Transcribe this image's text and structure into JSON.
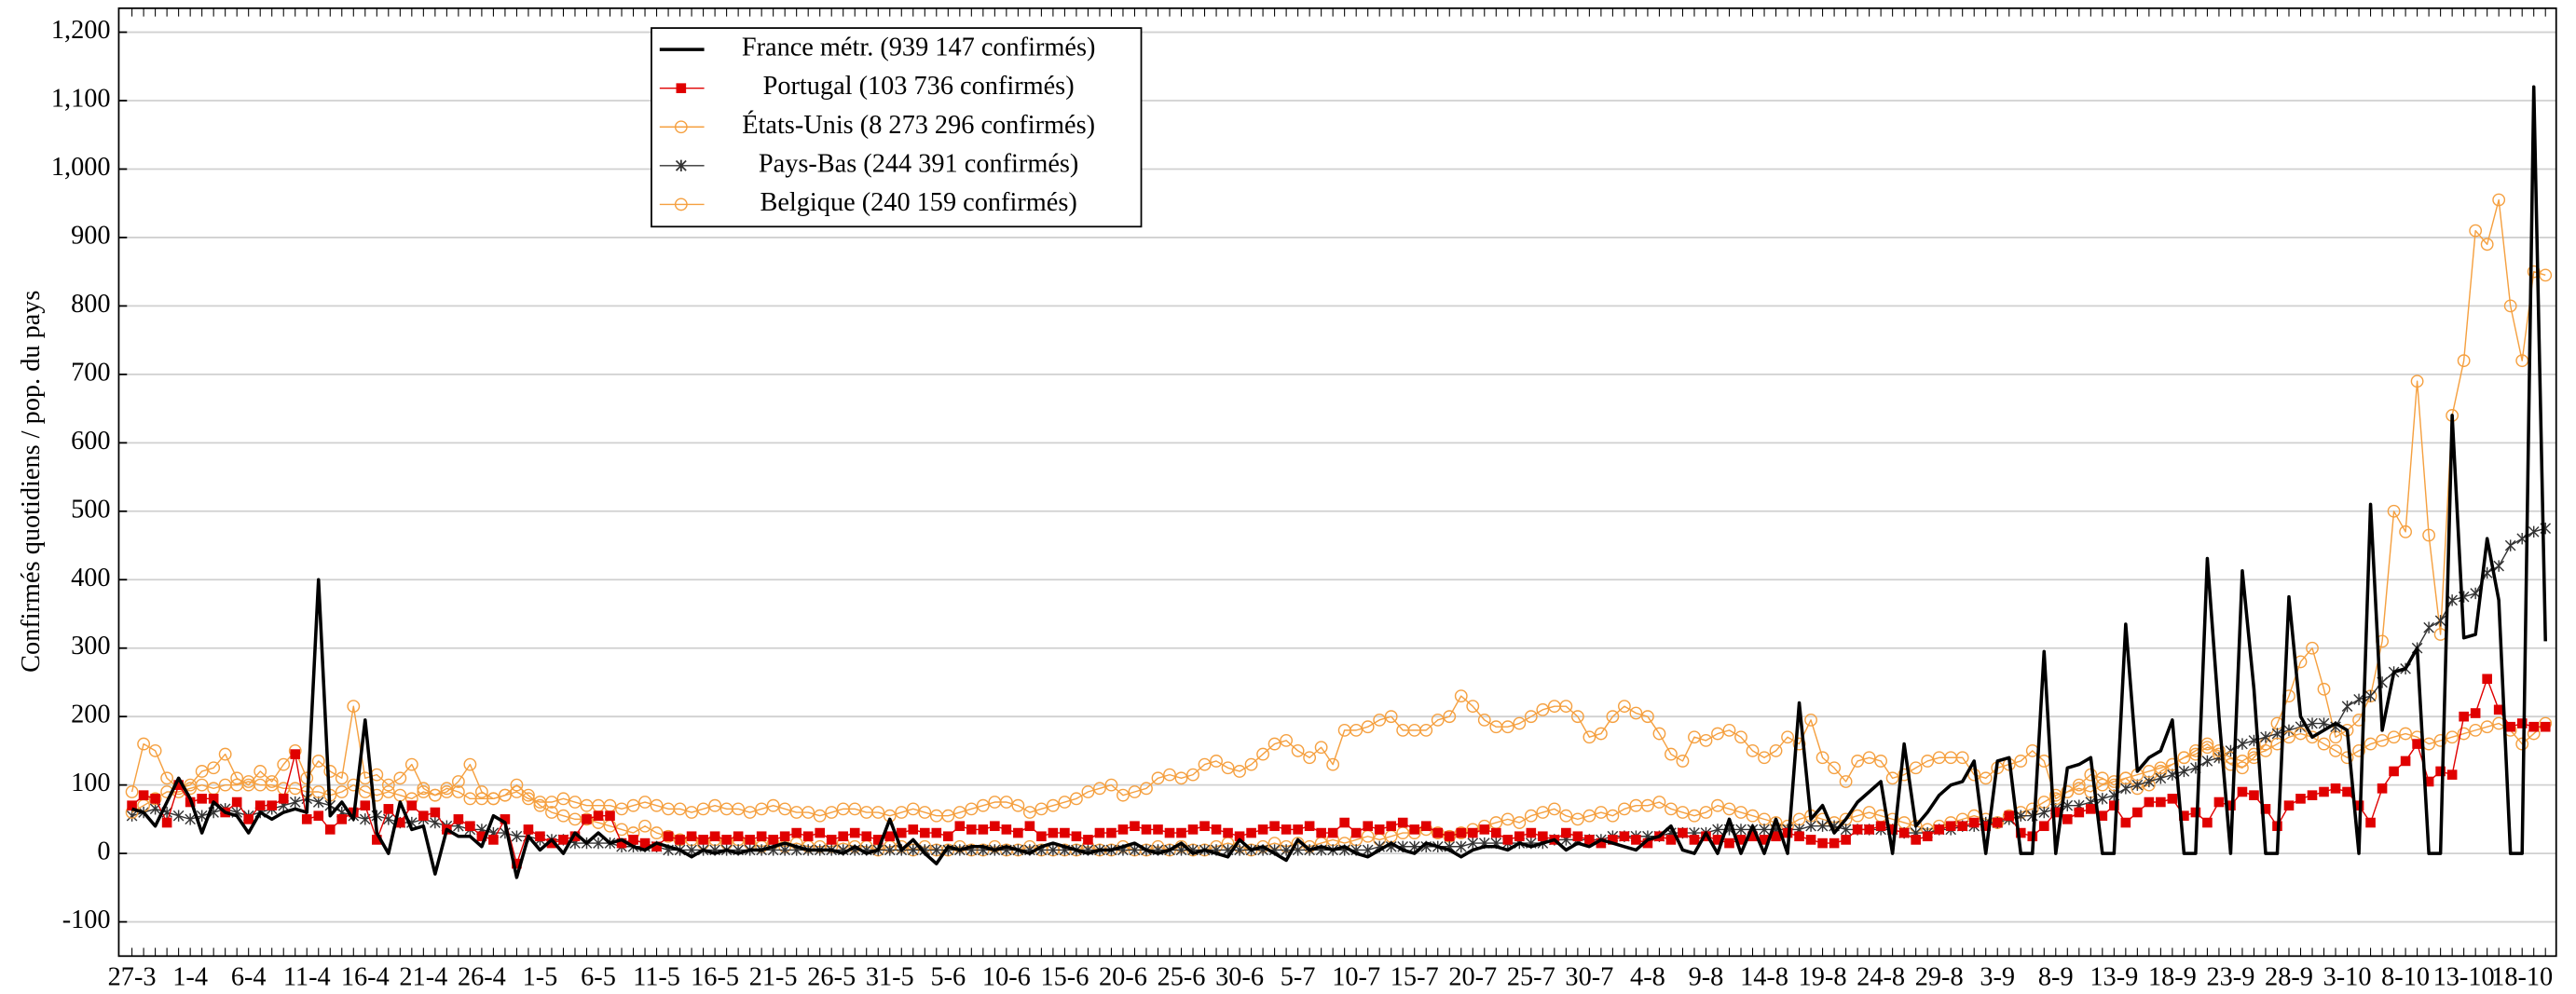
{
  "chart_data": {
    "type": "line",
    "y_label": "Confirmés quotidiens / pop. du pays",
    "categories": [
      "27-3",
      null,
      null,
      null,
      null,
      "1-4",
      null,
      null,
      null,
      null,
      "6-4",
      null,
      null,
      null,
      null,
      "11-4",
      null,
      null,
      null,
      null,
      "16-4",
      null,
      null,
      null,
      null,
      "21-4",
      null,
      null,
      null,
      null,
      "26-4",
      null,
      null,
      null,
      null,
      "1-5",
      null,
      null,
      null,
      null,
      "6-5",
      null,
      null,
      null,
      null,
      "11-5",
      null,
      null,
      null,
      null,
      "16-5",
      null,
      null,
      null,
      null,
      "21-5",
      null,
      null,
      null,
      null,
      "26-5",
      null,
      null,
      null,
      null,
      "31-5",
      null,
      null,
      null,
      null,
      "5-6",
      null,
      null,
      null,
      null,
      "10-6",
      null,
      null,
      null,
      null,
      "15-6",
      null,
      null,
      null,
      null,
      "20-6",
      null,
      null,
      null,
      null,
      "25-6",
      null,
      null,
      null,
      null,
      "30-6",
      null,
      null,
      null,
      null,
      "5-7",
      null,
      null,
      null,
      null,
      "10-7",
      null,
      null,
      null,
      null,
      "15-7",
      null,
      null,
      null,
      null,
      "20-7",
      null,
      null,
      null,
      null,
      "25-7",
      null,
      null,
      null,
      null,
      "30-7",
      null,
      null,
      null,
      null,
      "4-8",
      null,
      null,
      null,
      null,
      "9-8",
      null,
      null,
      null,
      null,
      "14-8",
      null,
      null,
      null,
      null,
      "19-8",
      null,
      null,
      null,
      null,
      "24-8",
      null,
      null,
      null,
      null,
      "29-8",
      null,
      null,
      null,
      null,
      "3-9",
      null,
      null,
      null,
      null,
      "8-9",
      null,
      null,
      null,
      null,
      "13-9",
      null,
      null,
      null,
      null,
      "18-9",
      null,
      null,
      null,
      null,
      "23-9",
      null,
      null,
      null,
      null,
      "28-9",
      null,
      null,
      null,
      null,
      "3-10",
      null,
      null,
      null,
      null,
      "8-10",
      null,
      null,
      null,
      null,
      "13-10",
      null,
      null,
      null,
      null,
      "18-10",
      null,
      null
    ],
    "series": [
      {
        "name": "France métr. (939 147 confirmés)",
        "color": "#000000",
        "marker": "none",
        "width": 2,
        "values": [
          65,
          60,
          40,
          75,
          110,
          80,
          30,
          75,
          60,
          55,
          30,
          60,
          50,
          60,
          65,
          60,
          400,
          55,
          75,
          50,
          195,
          30,
          0,
          75,
          35,
          40,
          -30,
          35,
          25,
          25,
          10,
          55,
          45,
          -35,
          25,
          5,
          20,
          0,
          30,
          15,
          30,
          15,
          20,
          10,
          5,
          15,
          10,
          5,
          -5,
          5,
          0,
          5,
          0,
          5,
          5,
          10,
          15,
          10,
          5,
          5,
          5,
          0,
          10,
          0,
          5,
          50,
          5,
          20,
          0,
          -15,
          10,
          5,
          10,
          10,
          5,
          10,
          5,
          0,
          10,
          15,
          10,
          5,
          0,
          5,
          5,
          10,
          15,
          5,
          0,
          5,
          15,
          0,
          5,
          0,
          -5,
          20,
          5,
          10,
          0,
          -10,
          20,
          5,
          10,
          5,
          10,
          0,
          -5,
          5,
          15,
          5,
          0,
          15,
          10,
          5,
          -5,
          5,
          10,
          10,
          5,
          15,
          10,
          15,
          20,
          5,
          15,
          10,
          20,
          15,
          10,
          5,
          20,
          25,
          40,
          5,
          0,
          30,
          0,
          50,
          0,
          40,
          0,
          50,
          0,
          220,
          50,
          70,
          30,
          50,
          75,
          90,
          105,
          0,
          160,
          40,
          60,
          85,
          100,
          105,
          135,
          0,
          135,
          140,
          0,
          0,
          295,
          0,
          125,
          130,
          140,
          0,
          0,
          335,
          120,
          140,
          150,
          195,
          0,
          0,
          431,
          200,
          0,
          413,
          240,
          0,
          0,
          375,
          200,
          170,
          180,
          190,
          180,
          0,
          510,
          180,
          265,
          270,
          300,
          0,
          0,
          640,
          315,
          320,
          460,
          370,
          0,
          0,
          1120,
          310
        ]
      },
      {
        "name": "Portugal (103 736 confirmés)",
        "color": "#e00000",
        "marker": "square",
        "width": 0.8,
        "values": [
          70,
          85,
          80,
          45,
          100,
          75,
          80,
          80,
          60,
          75,
          50,
          70,
          70,
          80,
          145,
          50,
          55,
          35,
          50,
          60,
          70,
          20,
          65,
          45,
          70,
          55,
          60,
          35,
          50,
          40,
          25,
          20,
          50,
          -15,
          35,
          25,
          15,
          20,
          25,
          50,
          55,
          55,
          15,
          20,
          15,
          10,
          25,
          20,
          25,
          20,
          25,
          20,
          25,
          20,
          25,
          20,
          25,
          30,
          25,
          30,
          20,
          25,
          30,
          25,
          20,
          25,
          30,
          35,
          30,
          30,
          25,
          40,
          35,
          35,
          40,
          35,
          30,
          40,
          25,
          30,
          30,
          25,
          20,
          30,
          30,
          35,
          40,
          35,
          35,
          30,
          30,
          35,
          40,
          35,
          30,
          25,
          30,
          35,
          40,
          35,
          35,
          40,
          30,
          30,
          45,
          30,
          40,
          35,
          40,
          45,
          35,
          40,
          30,
          25,
          30,
          30,
          35,
          30,
          20,
          25,
          30,
          25,
          20,
          30,
          25,
          20,
          15,
          20,
          25,
          20,
          15,
          25,
          20,
          30,
          20,
          25,
          20,
          15,
          20,
          25,
          20,
          25,
          30,
          25,
          20,
          15,
          15,
          20,
          35,
          35,
          40,
          35,
          30,
          20,
          25,
          35,
          40,
          40,
          45,
          40,
          45,
          55,
          30,
          25,
          40,
          60,
          50,
          60,
          65,
          55,
          70,
          45,
          60,
          75,
          75,
          80,
          55,
          60,
          45,
          75,
          70,
          90,
          85,
          65,
          40,
          70,
          80,
          85,
          90,
          95,
          90,
          70,
          45,
          95,
          120,
          135,
          160,
          105,
          120,
          115,
          200,
          205,
          255,
          210,
          185,
          190,
          185,
          185
        ]
      },
      {
        "name": "États-Unis (8 273 296 confirmés)",
        "color": "#f5a040",
        "marker": "circle",
        "width": 0.8,
        "values": [
          60,
          70,
          80,
          90,
          90,
          95,
          100,
          95,
          100,
          100,
          105,
          100,
          100,
          95,
          95,
          90,
          90,
          85,
          90,
          100,
          90,
          85,
          90,
          85,
          80,
          90,
          85,
          95,
          90,
          80,
          80,
          80,
          85,
          90,
          80,
          75,
          75,
          80,
          75,
          70,
          70,
          70,
          65,
          70,
          75,
          70,
          65,
          65,
          60,
          65,
          70,
          65,
          65,
          60,
          65,
          70,
          65,
          60,
          60,
          55,
          60,
          65,
          65,
          60,
          60,
          55,
          60,
          65,
          60,
          55,
          55,
          60,
          65,
          70,
          75,
          75,
          70,
          60,
          65,
          70,
          75,
          80,
          90,
          95,
          100,
          85,
          90,
          95,
          110,
          115,
          110,
          115,
          130,
          135,
          125,
          120,
          130,
          145,
          160,
          165,
          150,
          140,
          155,
          130,
          180,
          180,
          185,
          195,
          200,
          180,
          180,
          180,
          195,
          200,
          230,
          215,
          195,
          185,
          185,
          190,
          200,
          210,
          215,
          215,
          200,
          170,
          175,
          200,
          215,
          205,
          200,
          175,
          145,
          135,
          170,
          165,
          175,
          180,
          170,
          150,
          140,
          150,
          170,
          160,
          195,
          140,
          125,
          105,
          135,
          140,
          135,
          110,
          115,
          125,
          135,
          140,
          140,
          140,
          115,
          110,
          125,
          130,
          135,
          150,
          135,
          80,
          90,
          100,
          115,
          110,
          100,
          110,
          115,
          120,
          125,
          130,
          140,
          145,
          155,
          150,
          140,
          135,
          145,
          150,
          160,
          170,
          175,
          170,
          160,
          150,
          140,
          150,
          160,
          165,
          170,
          175,
          170,
          160,
          165,
          170,
          175,
          180,
          185,
          190,
          180,
          160,
          175,
          190
        ]
      },
      {
        "name": "Pays-Bas (244 391 confirmés)",
        "color": "#333333",
        "marker": "star",
        "width": 0.8,
        "values": [
          55,
          60,
          65,
          60,
          55,
          50,
          55,
          60,
          65,
          60,
          55,
          60,
          65,
          70,
          75,
          80,
          75,
          70,
          60,
          55,
          50,
          55,
          50,
          45,
          45,
          50,
          45,
          40,
          40,
          35,
          35,
          30,
          30,
          25,
          25,
          20,
          20,
          20,
          15,
          15,
          15,
          15,
          10,
          10,
          10,
          10,
          5,
          5,
          5,
          5,
          5,
          5,
          5,
          5,
          5,
          5,
          5,
          5,
          5,
          5,
          5,
          5,
          5,
          5,
          5,
          5,
          5,
          5,
          5,
          5,
          5,
          5,
          5,
          5,
          5,
          5,
          5,
          5,
          5,
          5,
          5,
          5,
          5,
          5,
          5,
          5,
          5,
          5,
          5,
          5,
          5,
          5,
          5,
          5,
          5,
          5,
          5,
          5,
          5,
          5,
          5,
          5,
          5,
          5,
          5,
          5,
          5,
          10,
          10,
          10,
          10,
          10,
          10,
          10,
          10,
          15,
          15,
          15,
          15,
          15,
          15,
          15,
          20,
          20,
          20,
          20,
          20,
          25,
          25,
          25,
          25,
          25,
          30,
          30,
          30,
          30,
          35,
          35,
          35,
          35,
          35,
          35,
          35,
          35,
          40,
          40,
          40,
          35,
          35,
          35,
          35,
          35,
          30,
          30,
          30,
          35,
          35,
          40,
          40,
          45,
          45,
          50,
          55,
          55,
          60,
          65,
          70,
          70,
          75,
          80,
          85,
          95,
          100,
          105,
          110,
          115,
          120,
          125,
          135,
          140,
          150,
          160,
          165,
          170,
          175,
          180,
          185,
          190,
          190,
          185,
          215,
          225,
          230,
          250,
          265,
          270,
          300,
          330,
          340,
          370,
          375,
          380,
          410,
          420,
          450,
          460,
          470,
          475
        ]
      },
      {
        "name": "Belgique (240 159 confirmés)",
        "color": "#f5a040",
        "marker": "circle",
        "width": 0.8,
        "values": [
          90,
          160,
          150,
          110,
          95,
          100,
          120,
          125,
          145,
          110,
          100,
          120,
          105,
          130,
          150,
          110,
          135,
          120,
          110,
          215,
          110,
          115,
          100,
          110,
          130,
          95,
          85,
          90,
          105,
          130,
          90,
          80,
          85,
          100,
          85,
          70,
          60,
          55,
          50,
          50,
          45,
          40,
          35,
          30,
          40,
          30,
          25,
          20,
          20,
          15,
          20,
          15,
          20,
          15,
          10,
          15,
          10,
          15,
          10,
          10,
          10,
          15,
          10,
          10,
          5,
          10,
          10,
          5,
          10,
          5,
          5,
          10,
          5,
          5,
          10,
          5,
          5,
          10,
          5,
          5,
          5,
          5,
          10,
          5,
          5,
          10,
          5,
          5,
          10,
          5,
          10,
          5,
          5,
          10,
          15,
          10,
          5,
          10,
          15,
          10,
          15,
          10,
          15,
          20,
          15,
          20,
          25,
          20,
          25,
          30,
          30,
          35,
          30,
          25,
          30,
          35,
          40,
          45,
          50,
          45,
          55,
          60,
          65,
          55,
          50,
          55,
          60,
          55,
          65,
          70,
          70,
          75,
          65,
          60,
          55,
          60,
          70,
          65,
          60,
          55,
          50,
          45,
          40,
          50,
          55,
          50,
          45,
          50,
          55,
          60,
          55,
          50,
          45,
          40,
          35,
          40,
          45,
          50,
          55,
          50,
          45,
          55,
          60,
          65,
          75,
          85,
          90,
          95,
          90,
          100,
          105,
          110,
          95,
          100,
          120,
          130,
          140,
          150,
          160,
          145,
          130,
          125,
          140,
          160,
          190,
          230,
          280,
          300,
          240,
          170,
          180,
          195,
          230,
          310,
          500,
          470,
          690,
          465,
          320,
          640,
          720,
          910,
          890,
          955,
          800,
          720,
          850,
          845
        ]
      }
    ],
    "ylim": [
      -150,
      1235
    ],
    "yticks": [
      -100,
      0,
      100,
      200,
      300,
      400,
      500,
      600,
      700,
      800,
      900,
      {
        "value": 1000,
        "label": "1,000"
      },
      {
        "value": 1100,
        "label": "1,100"
      },
      {
        "value": 1200,
        "label": "1,200"
      }
    ],
    "grid": true,
    "legend": "upper left"
  }
}
